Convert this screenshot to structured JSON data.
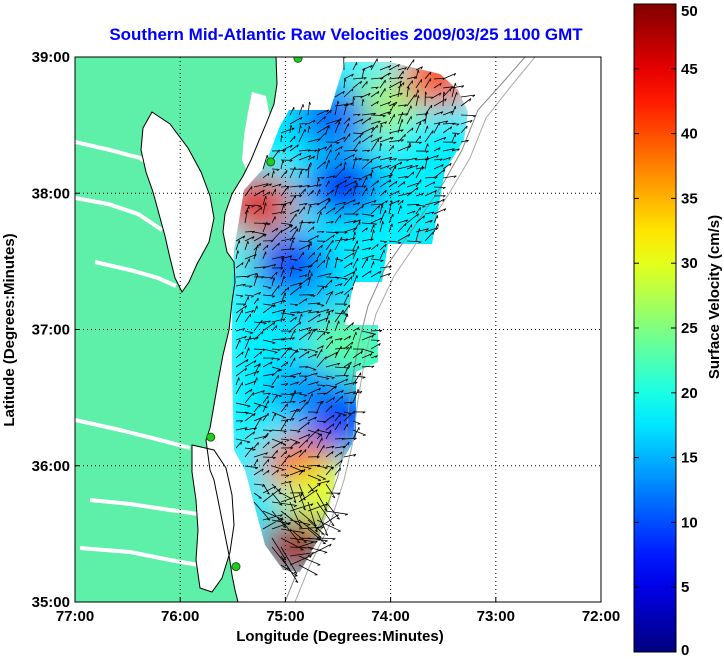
{
  "chart_data": {
    "type": "heatmap",
    "title": "Southern Mid-Atlantic Raw Velocities 2009/03/25 1100 GMT",
    "xlabel": "Longitude (Degrees:Minutes)",
    "ylabel": "Latitude (Degrees:Minutes)",
    "colorbar_label": "Surface Velocity (cm/s)",
    "xlim": [
      -77,
      -72
    ],
    "ylim": [
      35,
      39
    ],
    "clim": [
      0,
      50
    ],
    "grid": true,
    "x_ticks": [
      {
        "value": -77,
        "label": "77:00"
      },
      {
        "value": -76,
        "label": "76:00"
      },
      {
        "value": -75,
        "label": "75:00"
      },
      {
        "value": -74,
        "label": "74:00"
      },
      {
        "value": -73,
        "label": "73:00"
      },
      {
        "value": -72,
        "label": "72:00"
      }
    ],
    "y_ticks": [
      {
        "value": 35,
        "label": "35:00"
      },
      {
        "value": 36,
        "label": "36:00"
      },
      {
        "value": 37,
        "label": "37:00"
      },
      {
        "value": 38,
        "label": "38:00"
      },
      {
        "value": 39,
        "label": "39:00"
      }
    ],
    "colorbar_ticks": [
      {
        "value": 0,
        "label": "0"
      },
      {
        "value": 5,
        "label": "5"
      },
      {
        "value": 10,
        "label": "10"
      },
      {
        "value": 15,
        "label": "15"
      },
      {
        "value": 20,
        "label": "20"
      },
      {
        "value": 25,
        "label": "25"
      },
      {
        "value": 30,
        "label": "30"
      },
      {
        "value": 35,
        "label": "35"
      },
      {
        "value": 40,
        "label": "40"
      },
      {
        "value": 45,
        "label": "45"
      },
      {
        "value": 50,
        "label": "50"
      }
    ],
    "colormap": "jet",
    "land_color": "#5ef0a8",
    "water_color": "#ffffff",
    "station_color": "#22cc22",
    "stations": [
      {
        "lon": -74.88,
        "lat": 38.99
      },
      {
        "lon": -75.14,
        "lat": 38.23
      },
      {
        "lon": -75.71,
        "lat": 36.21
      },
      {
        "lon": -75.47,
        "lat": 35.26
      }
    ],
    "speed_hotspots": [
      {
        "lon": -74.15,
        "lat": 38.62,
        "speed": 27
      },
      {
        "lon": -73.55,
        "lat": 38.85,
        "speed": 40
      },
      {
        "lon": -74.55,
        "lat": 38.55,
        "speed": 11
      },
      {
        "lon": -74.45,
        "lat": 38.05,
        "speed": 6
      },
      {
        "lon": -75.25,
        "lat": 37.92,
        "speed": 45
      },
      {
        "lon": -75.05,
        "lat": 37.5,
        "speed": 26
      },
      {
        "lon": -74.95,
        "lat": 37.48,
        "speed": 8
      },
      {
        "lon": -74.7,
        "lat": 37.15,
        "speed": 16
      },
      {
        "lon": -74.4,
        "lat": 36.9,
        "speed": 24
      },
      {
        "lon": -74.8,
        "lat": 36.55,
        "speed": 14
      },
      {
        "lon": -74.05,
        "lat": 36.75,
        "speed": 22
      },
      {
        "lon": -74.45,
        "lat": 36.35,
        "speed": 9
      },
      {
        "lon": -74.85,
        "lat": 36.0,
        "speed": 42
      },
      {
        "lon": -74.9,
        "lat": 35.4,
        "speed": 48
      },
      {
        "lon": -74.65,
        "lat": 35.8,
        "speed": 30
      }
    ]
  }
}
